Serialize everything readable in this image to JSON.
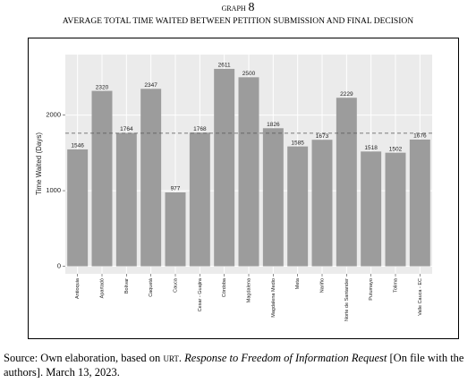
{
  "header": {
    "graph_label": "graph",
    "graph_number": "8",
    "title": "AVERAGE TOTAL TIME WAITED BETWEEN PETITION SUBMISSION AND FINAL DECISION"
  },
  "chart_data": {
    "type": "bar",
    "categories": [
      "Antioquia",
      "Apartadó",
      "Bolívar",
      "Caquetá",
      "Cauca",
      "Cesar - Guajira",
      "Córdoba",
      "Magdalena",
      "Magdalena Medio",
      "Meta",
      "Nariño",
      "Norte de Santander",
      "Putumayo",
      "Tolima",
      "Valle Cauca - EC"
    ],
    "values": [
      1546,
      2320,
      1764,
      2347,
      977,
      1768,
      2611,
      2500,
      1826,
      1585,
      1673,
      2229,
      1518,
      1502,
      1676
    ],
    "color": "#9c9c9c",
    "y_label": "Time Waited (Days)",
    "ylim": [
      -100,
      2800
    ],
    "yticks": [
      0,
      1000,
      2000
    ],
    "grid": true,
    "reference_line": 1760
  },
  "source": {
    "prefix": "Source: Own elaboration, based on ",
    "org": "urt",
    "sep": ". ",
    "work": "Response to Freedom of Information Request",
    "rest": " [On file with the authors]. March 13, 2023."
  }
}
